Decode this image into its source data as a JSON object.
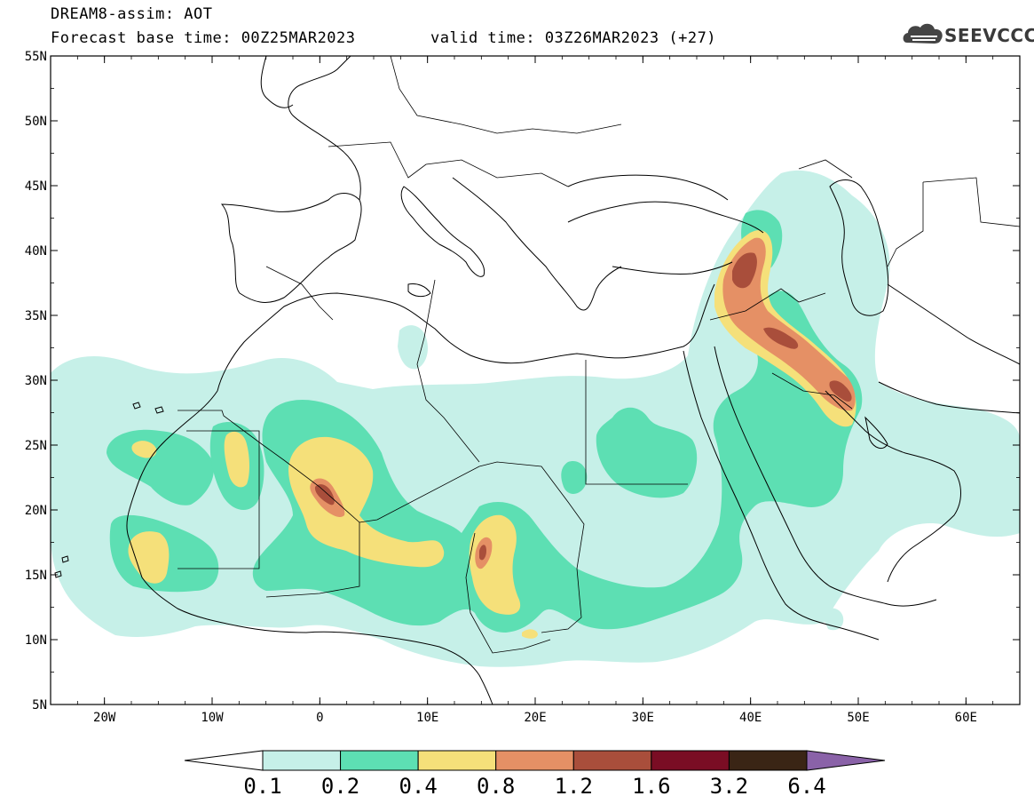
{
  "header": {
    "title_line1": "DREAM8-assim: AOT",
    "title_line2": "Forecast base time: 00Z25MAR2023",
    "valid_time": "valid time: 03Z26MAR2023 (+27)",
    "logo_text": "SEEVCCC"
  },
  "axes": {
    "lat_labels": [
      "55N",
      "50N",
      "45N",
      "40N",
      "35N",
      "30N",
      "25N",
      "20N",
      "15N",
      "10N",
      "5N"
    ],
    "lon_labels": [
      "20W",
      "10W",
      "0",
      "10E",
      "20E",
      "30E",
      "40E",
      "50E",
      "60E"
    ],
    "lon_range": [
      -25,
      65
    ],
    "lat_range": [
      5,
      55
    ]
  },
  "colorbar": {
    "levels": [
      "0.1",
      "0.2",
      "0.4",
      "0.8",
      "1.2",
      "1.6",
      "3.2",
      "6.4"
    ],
    "colors": [
      "#ffffff",
      "#c6f0e8",
      "#5ddfb3",
      "#f5e07a",
      "#e59065",
      "#a94e3b",
      "#7a0d24",
      "#3a2515",
      "#8a62a8"
    ]
  }
}
